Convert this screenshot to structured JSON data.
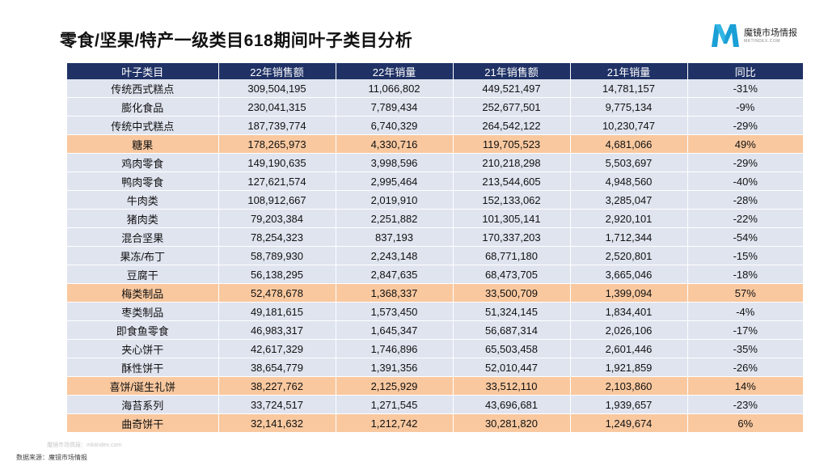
{
  "title": "零食/坚果/特产一级类目618期间叶子类目分析",
  "logo": {
    "name": "魔镜市场情报",
    "sub": "MKTINDEX.COM",
    "color": "#1a9fd6"
  },
  "table": {
    "headers": [
      "叶子类目",
      "22年销售额",
      "22年销量",
      "21年销售额",
      "21年销量",
      "同比"
    ],
    "rows": [
      {
        "cells": [
          "传统西式糕点",
          "309,504,195",
          "11,066,802",
          "449,521,497",
          "14,781,157",
          "-31%"
        ],
        "highlight": false
      },
      {
        "cells": [
          "膨化食品",
          "230,041,315",
          "7,789,434",
          "252,677,501",
          "9,775,134",
          "-9%"
        ],
        "highlight": false
      },
      {
        "cells": [
          "传统中式糕点",
          "187,739,774",
          "6,740,329",
          "264,542,122",
          "10,230,747",
          "-29%"
        ],
        "highlight": false
      },
      {
        "cells": [
          "糖果",
          "178,265,973",
          "4,330,716",
          "119,705,523",
          "4,681,066",
          "49%"
        ],
        "highlight": true
      },
      {
        "cells": [
          "鸡肉零食",
          "149,190,635",
          "3,998,596",
          "210,218,298",
          "5,503,697",
          "-29%"
        ],
        "highlight": false
      },
      {
        "cells": [
          "鸭肉零食",
          "127,621,574",
          "2,995,464",
          "213,544,605",
          "4,948,560",
          "-40%"
        ],
        "highlight": false
      },
      {
        "cells": [
          "牛肉类",
          "108,912,667",
          "2,019,910",
          "152,133,062",
          "3,285,047",
          "-28%"
        ],
        "highlight": false
      },
      {
        "cells": [
          "猪肉类",
          "79,203,384",
          "2,251,882",
          "101,305,141",
          "2,920,101",
          "-22%"
        ],
        "highlight": false
      },
      {
        "cells": [
          "混合坚果",
          "78,254,323",
          "837,193",
          "170,337,203",
          "1,712,344",
          "-54%"
        ],
        "highlight": false
      },
      {
        "cells": [
          "果冻/布丁",
          "58,789,930",
          "2,243,148",
          "68,771,180",
          "2,520,801",
          "-15%"
        ],
        "highlight": false
      },
      {
        "cells": [
          "豆腐干",
          "56,138,295",
          "2,847,635",
          "68,473,705",
          "3,665,046",
          "-18%"
        ],
        "highlight": false
      },
      {
        "cells": [
          "梅类制品",
          "52,478,678",
          "1,368,337",
          "33,500,709",
          "1,399,094",
          "57%"
        ],
        "highlight": true
      },
      {
        "cells": [
          "枣类制品",
          "49,181,615",
          "1,573,450",
          "51,324,145",
          "1,834,401",
          "-4%"
        ],
        "highlight": false
      },
      {
        "cells": [
          "即食鱼零食",
          "46,983,317",
          "1,645,347",
          "56,687,314",
          "2,026,106",
          "-17%"
        ],
        "highlight": false
      },
      {
        "cells": [
          "夹心饼干",
          "42,617,329",
          "1,746,896",
          "65,503,458",
          "2,601,446",
          "-35%"
        ],
        "highlight": false
      },
      {
        "cells": [
          "酥性饼干",
          "38,654,779",
          "1,391,356",
          "52,010,447",
          "1,921,859",
          "-26%"
        ],
        "highlight": false
      },
      {
        "cells": [
          "喜饼/诞生礼饼",
          "38,227,762",
          "2,125,929",
          "33,512,110",
          "2,103,860",
          "14%"
        ],
        "highlight": true
      },
      {
        "cells": [
          "海苔系列",
          "33,724,517",
          "1,271,545",
          "43,696,681",
          "1,939,657",
          "-23%"
        ],
        "highlight": false
      },
      {
        "cells": [
          "曲奇饼干",
          "32,141,632",
          "1,212,742",
          "30,281,820",
          "1,249,674",
          "6%"
        ],
        "highlight": true
      }
    ]
  },
  "watermark": "魔镜市场情报：mktindex.com",
  "source": "数据来源：魔镜市场情报"
}
